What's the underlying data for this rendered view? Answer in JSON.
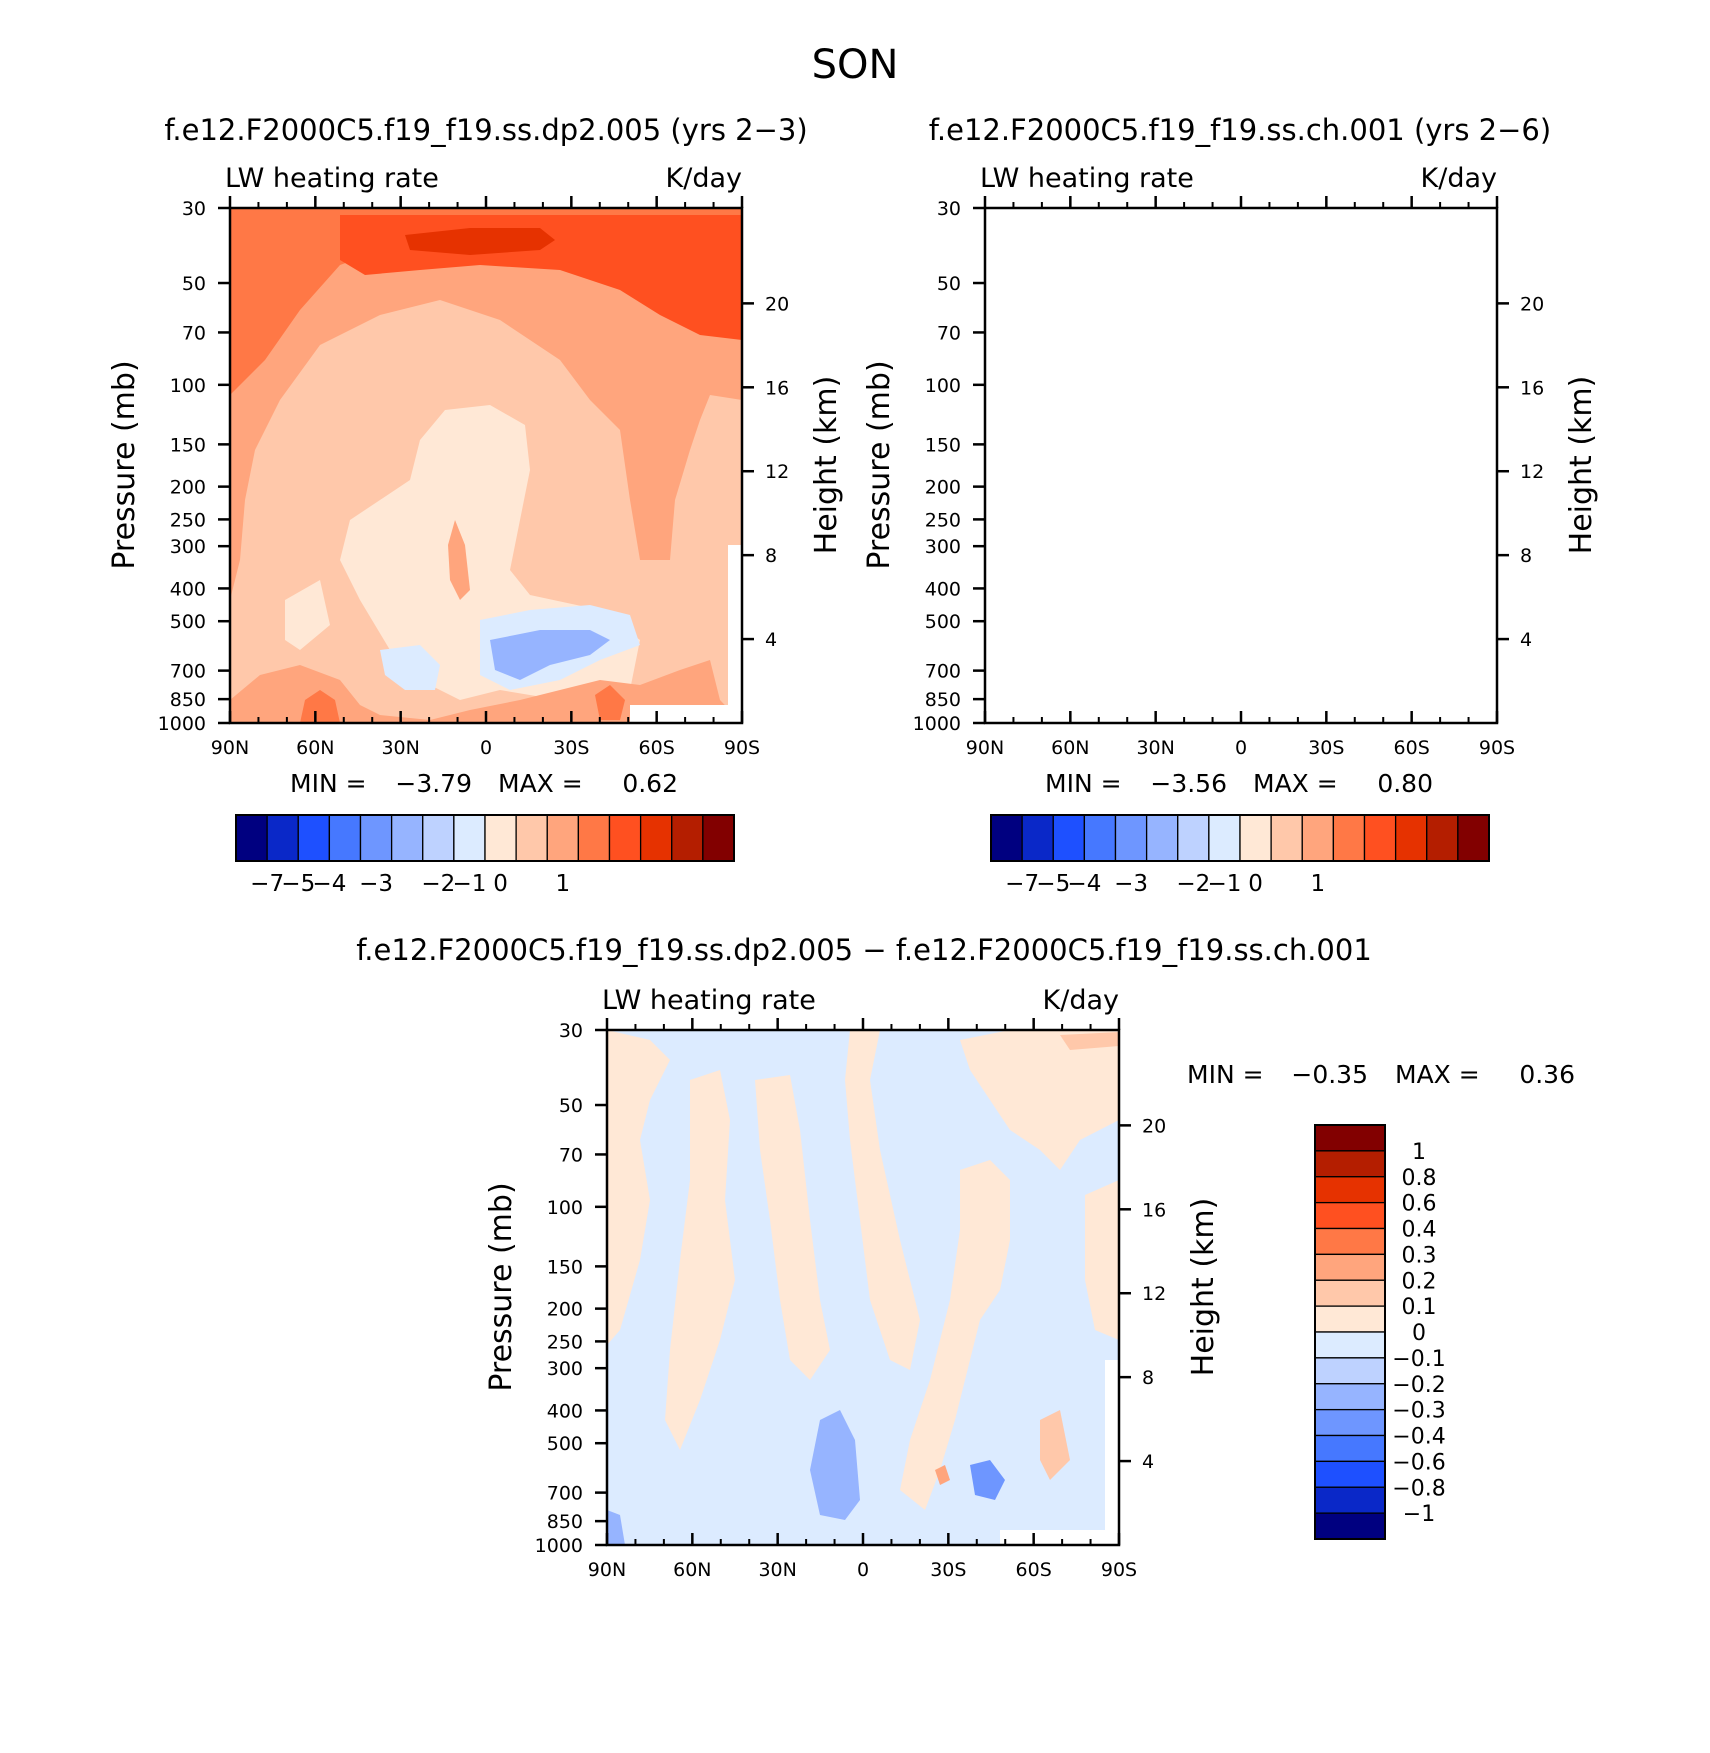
{
  "figure": {
    "title": "SON"
  },
  "chart_data": [
    {
      "type": "heatmap",
      "title": "f.e12.F2000C5.f19_f19.ss.dp2.005 (yrs 2−3)",
      "left_label": "LW heating rate",
      "right_label": "K/day",
      "xlabel": "",
      "ylabel": "Pressure (mb)",
      "ylabel_right": "Height (km)",
      "x_ticks": [
        "90N",
        "60N",
        "30N",
        "0",
        "30S",
        "60S",
        "90S"
      ],
      "y_ticks": [
        "30",
        "50",
        "70",
        "100",
        "150",
        "200",
        "250",
        "300",
        "400",
        "500",
        "700",
        "850",
        "1000"
      ],
      "y_ticks_right": [
        "20",
        "16",
        "12",
        "8",
        "4"
      ],
      "xlim": [
        90,
        -90
      ],
      "ylim": [
        1000,
        30
      ],
      "min_label": "MIN =",
      "min_value": "−3.79",
      "max_label": "MAX =",
      "max_value": "0.62",
      "colorbar_labels": [
        "−7",
        "−5",
        "−4",
        "−3",
        "−2",
        "−1",
        "0",
        "1"
      ],
      "colorbar_colors": [
        "#000080",
        "#0a28c8",
        "#1e50ff",
        "#4678ff",
        "#6e96ff",
        "#96b4ff",
        "#bed2ff",
        "#dcebff",
        "#ffe8d6",
        "#ffc8aa",
        "#ffa57d",
        "#ff7846",
        "#ff5020",
        "#e63200",
        "#b41e00",
        "#820000"
      ]
    },
    {
      "type": "heatmap",
      "title": "f.e12.F2000C5.f19_f19.ss.ch.001 (yrs 2−6)",
      "left_label": "LW heating rate",
      "right_label": "K/day",
      "xlabel": "",
      "ylabel": "Pressure (mb)",
      "ylabel_right": "Height (km)",
      "x_ticks": [
        "90N",
        "60N",
        "30N",
        "0",
        "30S",
        "60S",
        "90S"
      ],
      "y_ticks": [
        "30",
        "50",
        "70",
        "100",
        "150",
        "200",
        "250",
        "300",
        "400",
        "500",
        "700",
        "850",
        "1000"
      ],
      "y_ticks_right": [
        "20",
        "16",
        "12",
        "8",
        "4"
      ],
      "xlim": [
        90,
        -90
      ],
      "ylim": [
        1000,
        30
      ],
      "min_label": "MIN =",
      "min_value": "−3.56",
      "max_label": "MAX =",
      "max_value": "0.80",
      "colorbar_labels": [
        "−7",
        "−5",
        "−4",
        "−3",
        "−2",
        "−1",
        "0",
        "1"
      ],
      "colorbar_colors": [
        "#000080",
        "#0a28c8",
        "#1e50ff",
        "#4678ff",
        "#6e96ff",
        "#96b4ff",
        "#bed2ff",
        "#dcebff",
        "#ffe8d6",
        "#ffc8aa",
        "#ffa57d",
        "#ff7846",
        "#ff5020",
        "#e63200",
        "#b41e00",
        "#820000"
      ]
    },
    {
      "type": "heatmap",
      "title": "f.e12.F2000C5.f19_f19.ss.dp2.005 − f.e12.F2000C5.f19_f19.ss.ch.001",
      "left_label": "LW heating rate",
      "right_label": "K/day",
      "xlabel": "",
      "ylabel": "Pressure (mb)",
      "ylabel_right": "Height (km)",
      "x_ticks": [
        "90N",
        "60N",
        "30N",
        "0",
        "30S",
        "60S",
        "90S"
      ],
      "y_ticks": [
        "30",
        "50",
        "70",
        "100",
        "150",
        "200",
        "250",
        "300",
        "400",
        "500",
        "700",
        "850",
        "1000"
      ],
      "y_ticks_right": [
        "20",
        "16",
        "12",
        "8",
        "4"
      ],
      "xlim": [
        90,
        -90
      ],
      "ylim": [
        1000,
        30
      ],
      "min_label": "MIN =",
      "min_value": "−0.35",
      "max_label": "MAX =",
      "max_value": "0.36",
      "colorbar_labels": [
        "1",
        "0.8",
        "0.6",
        "0.4",
        "0.3",
        "0.2",
        "0.1",
        "0",
        "−0.1",
        "−0.2",
        "−0.3",
        "−0.4",
        "−0.6",
        "−0.8",
        "−1"
      ],
      "colorbar_colors": [
        "#820000",
        "#b41e00",
        "#e63200",
        "#ff5020",
        "#ff7846",
        "#ffa57d",
        "#ffc8aa",
        "#ffe8d6",
        "#dcebff",
        "#bed2ff",
        "#96b4ff",
        "#6e96ff",
        "#4678ff",
        "#1e50ff",
        "#0a28c8",
        "#000080"
      ]
    }
  ]
}
